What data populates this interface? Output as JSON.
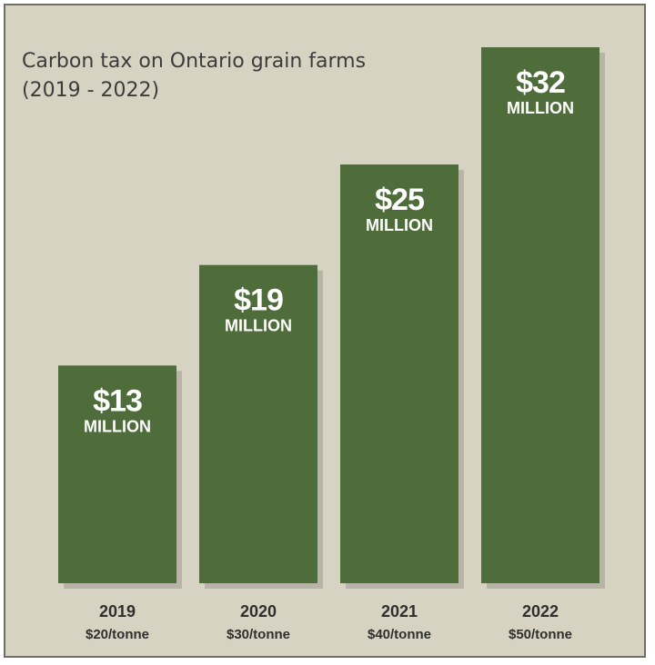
{
  "chart_data": {
    "type": "bar",
    "title_lines": [
      "Carbon tax on Ontario grain farms",
      "(2019 - 2022)"
    ],
    "categories": [
      "2019",
      "2020",
      "2021",
      "2022"
    ],
    "sublabels": [
      "$20/tonne",
      "$30/tonne",
      "$40/tonne",
      "$50/tonne"
    ],
    "values": [
      13,
      19,
      25,
      32
    ],
    "value_labels": [
      "$13",
      "$19",
      "$25",
      "$32"
    ],
    "value_unit": "MILLION",
    "ylim": [
      0,
      32
    ],
    "grid": false,
    "legend": "none",
    "colors": {
      "bar": "#4f6c3b",
      "background": "#d7d3c3",
      "border": "#6f6f68",
      "text": "#3c3c3a",
      "bar_text": "#ffffff"
    }
  }
}
